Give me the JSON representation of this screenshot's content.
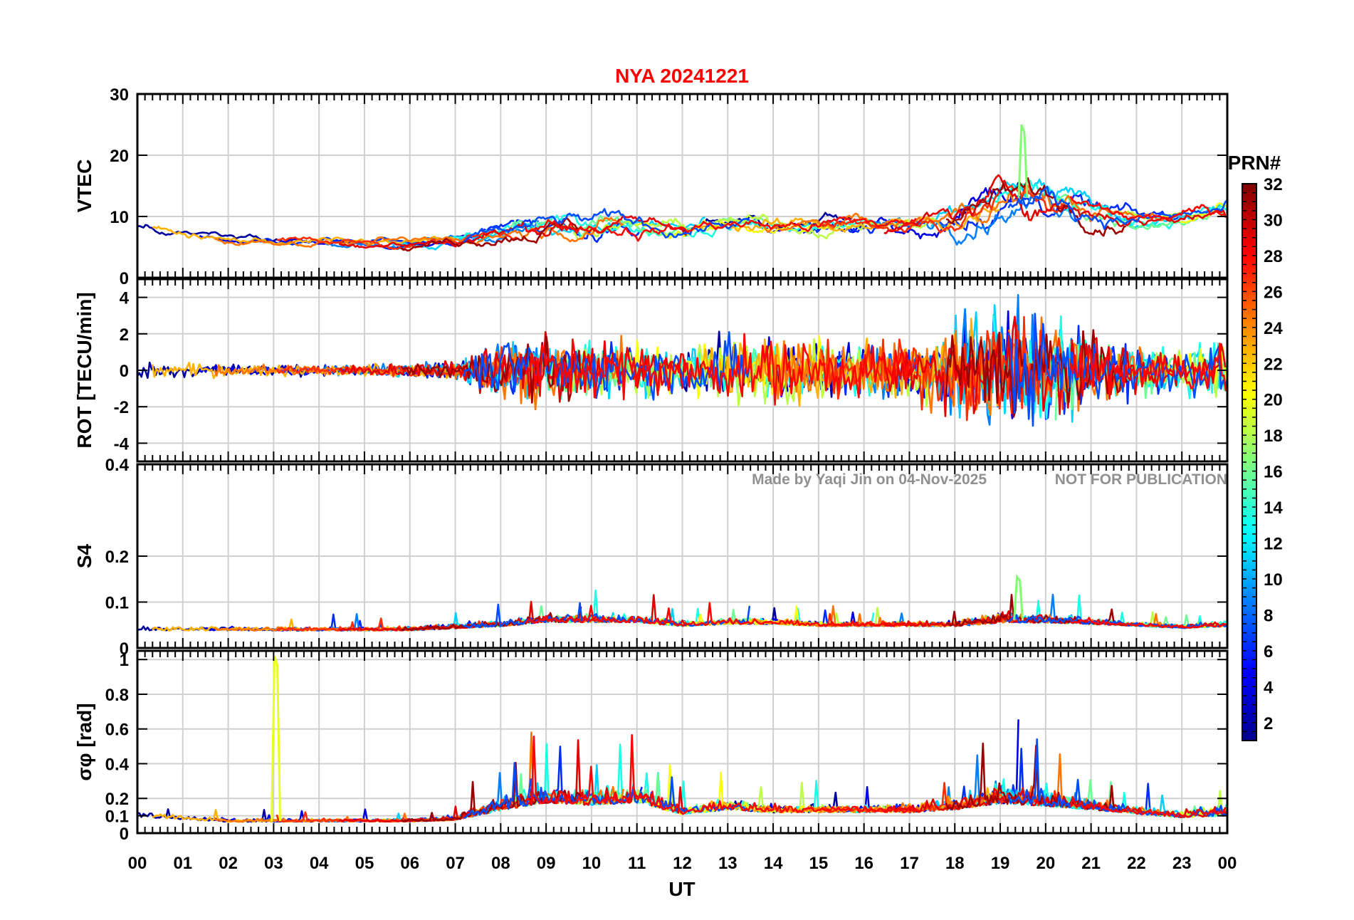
{
  "chart_data": {
    "type": "line",
    "title": "NYA   20241221",
    "title_color": "#ff0000",
    "xlabel": "UT",
    "x_ticks": [
      "00",
      "01",
      "02",
      "03",
      "04",
      "05",
      "06",
      "07",
      "08",
      "09",
      "10",
      "11",
      "12",
      "13",
      "14",
      "15",
      "16",
      "17",
      "18",
      "19",
      "20",
      "21",
      "22",
      "23",
      "00"
    ],
    "xlim": [
      0,
      24
    ],
    "grid": true,
    "watermark": {
      "credit": "Made by Yaqi Jin on 04-Nov-2025",
      "notice": "NOT FOR PUBLICATION"
    },
    "colorbar": {
      "label": "PRN#",
      "colormap": "jet",
      "range": [
        1,
        32
      ],
      "ticks": [
        "2",
        "4",
        "6",
        "8",
        "10",
        "12",
        "14",
        "16",
        "18",
        "20",
        "22",
        "24",
        "26",
        "28",
        "30",
        "32"
      ]
    },
    "panels": [
      {
        "ylabel": "VTEC",
        "ylim": [
          0,
          30
        ],
        "y_ticks": [
          0,
          10,
          20,
          30
        ],
        "y_tick_labels": [
          "0",
          "10",
          "20",
          "30"
        ],
        "envelope": {
          "x": [
            0,
            2,
            4,
            6,
            7,
            8,
            9,
            10,
            11,
            12,
            13,
            14,
            15,
            16,
            17,
            18,
            19,
            20,
            21,
            22,
            23,
            24
          ],
          "mean": [
            8,
            6,
            6,
            5.5,
            6,
            7.5,
            8.5,
            9,
            8.5,
            8,
            9,
            8.5,
            8.5,
            9,
            8.5,
            10,
            13,
            13,
            11,
            9.5,
            10,
            11
          ],
          "spread": [
            3,
            2.5,
            2.5,
            3,
            3.5,
            5,
            6,
            6,
            6,
            5,
            5,
            5,
            5,
            5,
            5,
            8,
            10,
            10,
            7,
            5,
            4,
            6
          ]
        },
        "peak": {
          "x": 19.5,
          "value": 25
        }
      },
      {
        "ylabel": "ROT [TECU/min]",
        "ylim": [
          -5,
          5
        ],
        "y_ticks": [
          -4,
          -2,
          0,
          2,
          4
        ],
        "y_tick_labels": [
          "-4",
          "-2",
          "0",
          "2",
          "4"
        ],
        "envelope": {
          "x": [
            0,
            2,
            4,
            6,
            7,
            8,
            9,
            10,
            11,
            12,
            13,
            14,
            15,
            16,
            17,
            18,
            19,
            20,
            21,
            22,
            23,
            24
          ],
          "mean": [
            0,
            0,
            0,
            0,
            0,
            0,
            0,
            0,
            0,
            0,
            0,
            0,
            0,
            0,
            0,
            0,
            0,
            0,
            0,
            0,
            0,
            0
          ],
          "spread": [
            0.8,
            0.6,
            0.5,
            0.6,
            0.8,
            2.5,
            3,
            2.5,
            2.5,
            2,
            3,
            3,
            2.5,
            2.5,
            2.5,
            4,
            5,
            5,
            3,
            2,
            2,
            3
          ]
        }
      },
      {
        "ylabel": "S4",
        "ylim": [
          0,
          0.4
        ],
        "y_ticks": [
          0,
          0.1,
          0.2,
          0.4
        ],
        "y_tick_labels": [
          "0",
          "0.1",
          "0.2",
          "0.4"
        ],
        "envelope": {
          "x": [
            0,
            2,
            4,
            6,
            7,
            8,
            9,
            10,
            11,
            12,
            13,
            14,
            15,
            16,
            17,
            18,
            19,
            20,
            21,
            22,
            23,
            24
          ],
          "mean": [
            0.04,
            0.04,
            0.04,
            0.04,
            0.045,
            0.05,
            0.06,
            0.06,
            0.06,
            0.05,
            0.055,
            0.055,
            0.05,
            0.05,
            0.05,
            0.05,
            0.06,
            0.06,
            0.055,
            0.05,
            0.045,
            0.05
          ],
          "spread": [
            0.02,
            0.02,
            0.02,
            0.02,
            0.025,
            0.03,
            0.04,
            0.04,
            0.04,
            0.03,
            0.03,
            0.03,
            0.025,
            0.025,
            0.025,
            0.03,
            0.05,
            0.05,
            0.03,
            0.02,
            0.02,
            0.03
          ]
        },
        "peak": {
          "x": 19.4,
          "value": 0.155
        }
      },
      {
        "ylabel": "σφ [rad]",
        "ylim": [
          0,
          1.05
        ],
        "y_ticks": [
          0,
          0.1,
          0.2,
          0.4,
          0.6,
          0.8,
          1
        ],
        "y_tick_labels": [
          "0",
          "0.1",
          "0.2",
          "0.4",
          "0.6",
          "0.8",
          "1"
        ],
        "envelope": {
          "x": [
            0,
            2,
            4,
            6,
            7,
            8,
            9,
            10,
            11,
            12,
            13,
            14,
            15,
            16,
            17,
            18,
            19,
            20,
            21,
            22,
            23,
            24
          ],
          "mean": [
            0.1,
            0.07,
            0.07,
            0.07,
            0.08,
            0.15,
            0.2,
            0.18,
            0.2,
            0.12,
            0.15,
            0.13,
            0.13,
            0.13,
            0.13,
            0.15,
            0.2,
            0.18,
            0.15,
            0.12,
            0.1,
            0.12
          ],
          "spread": [
            0.08,
            0.05,
            0.04,
            0.04,
            0.06,
            0.2,
            0.25,
            0.2,
            0.25,
            0.12,
            0.15,
            0.12,
            0.1,
            0.1,
            0.12,
            0.15,
            0.3,
            0.25,
            0.15,
            0.1,
            0.1,
            0.2
          ]
        },
        "peak": {
          "x": 3.05,
          "value": 1.02
        }
      }
    ]
  }
}
